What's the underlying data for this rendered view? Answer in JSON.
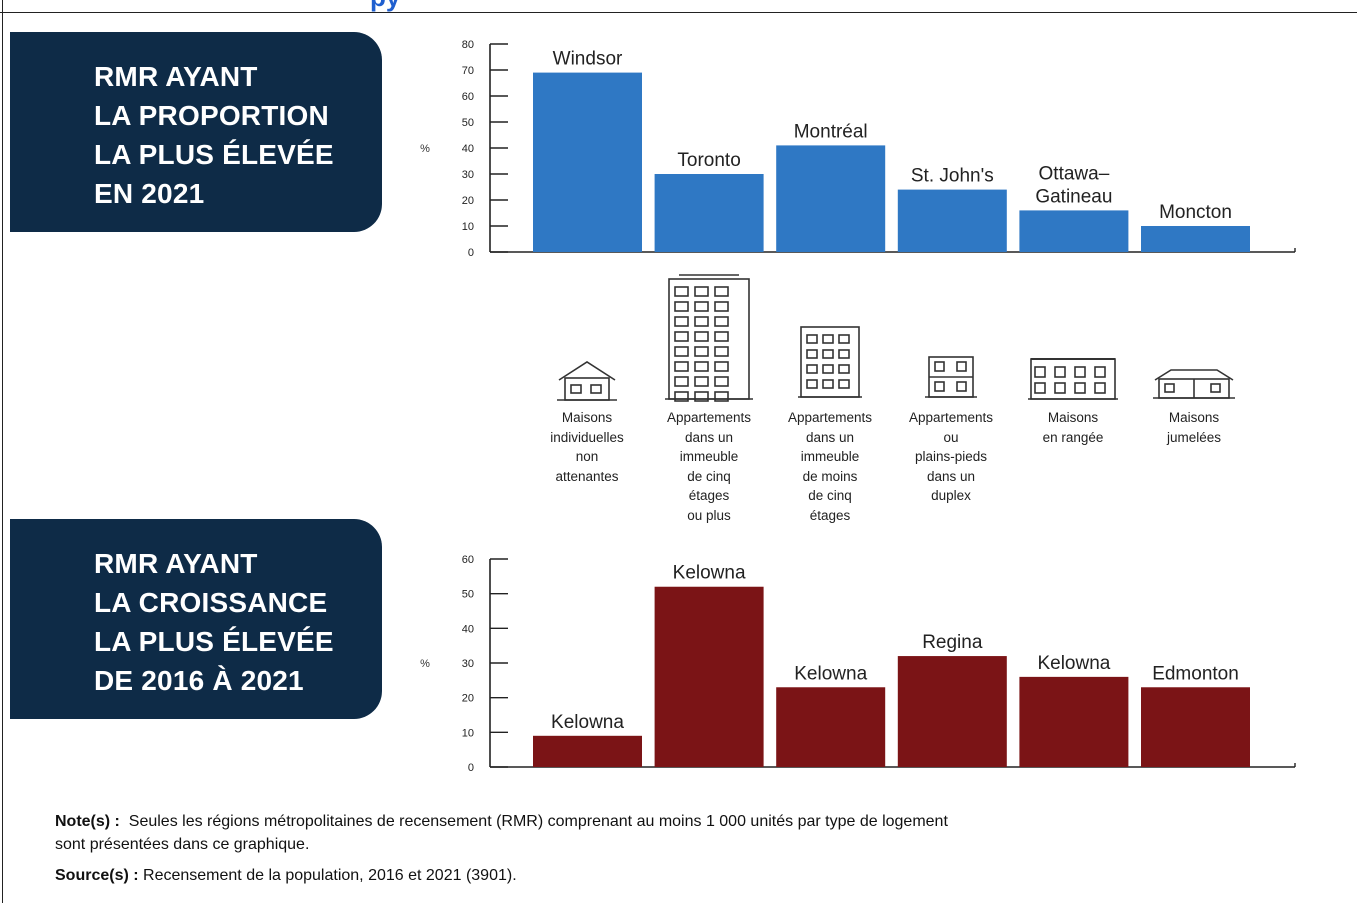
{
  "header": {
    "clipped_text": "py"
  },
  "panels": {
    "top": [
      "RMR AYANT",
      "LA PROPORTION",
      "LA PLUS ÉLEVÉE",
      "EN 2021"
    ],
    "bottom": [
      "RMR AYANT",
      "LA CROISSANCE",
      "LA PLUS ÉLEVÉE",
      "DE 2016 À 2021"
    ]
  },
  "dwelling_types": [
    {
      "label": [
        "Maisons",
        "individuelles",
        "non",
        "attenantes"
      ],
      "icon": "single-detached-house-icon"
    },
    {
      "label": [
        "Appartements",
        "dans un",
        "immeuble",
        "de cinq",
        "étages",
        "ou plus"
      ],
      "icon": "high-rise-apartment-icon"
    },
    {
      "label": [
        "Appartements",
        "dans un",
        "immeuble",
        "de moins",
        "de cinq",
        "étages"
      ],
      "icon": "low-rise-apartment-icon"
    },
    {
      "label": [
        "Appartements",
        "ou",
        "plains-pieds",
        "dans un",
        "duplex"
      ],
      "icon": "duplex-icon"
    },
    {
      "label": [
        "Maisons",
        "en rangée"
      ],
      "icon": "row-house-icon"
    },
    {
      "label": [
        "Maisons",
        "jumelées"
      ],
      "icon": "semi-detached-house-icon"
    }
  ],
  "chart_data": [
    {
      "type": "bar",
      "ylabel": "%",
      "ylim": [
        0,
        80
      ],
      "yticks": [
        0,
        10,
        20,
        30,
        40,
        50,
        60,
        70,
        80
      ],
      "categories": [
        "Windsor",
        "Toronto",
        "Montréal",
        "St. John's",
        "Ottawa–Gatineau",
        "Moncton"
      ],
      "bar_labels": [
        [
          "Windsor"
        ],
        [
          "Toronto"
        ],
        [
          "Montréal"
        ],
        [
          "St. John's"
        ],
        [
          "Ottawa–",
          "Gatineau"
        ],
        [
          "Moncton"
        ]
      ],
      "values": [
        69,
        30,
        41,
        24,
        16,
        10
      ],
      "color": "#2f78c4"
    },
    {
      "type": "bar",
      "ylabel": "%",
      "ylim": [
        0,
        60
      ],
      "yticks": [
        0,
        10,
        20,
        30,
        40,
        50,
        60
      ],
      "categories": [
        "Kelowna",
        "Kelowna",
        "Kelowna",
        "Regina",
        "Kelowna",
        "Edmonton"
      ],
      "bar_labels": [
        [
          "Kelowna"
        ],
        [
          "Kelowna"
        ],
        [
          "Kelowna"
        ],
        [
          "Regina"
        ],
        [
          "Kelowna"
        ],
        [
          "Edmonton"
        ]
      ],
      "values": [
        9,
        52,
        23,
        32,
        26,
        23
      ],
      "color": "#7b1416"
    }
  ],
  "notes": {
    "label": "Note(s) :",
    "line1": "Seules les régions métropolitaines de recensement (RMR) comprenant au moins 1 000 unités par type de logement",
    "line2": "sont présentées dans ce graphique.",
    "source_label": "Source(s) :",
    "source_text": "Recensement de la population, 2016 et 2021 (3901)."
  }
}
